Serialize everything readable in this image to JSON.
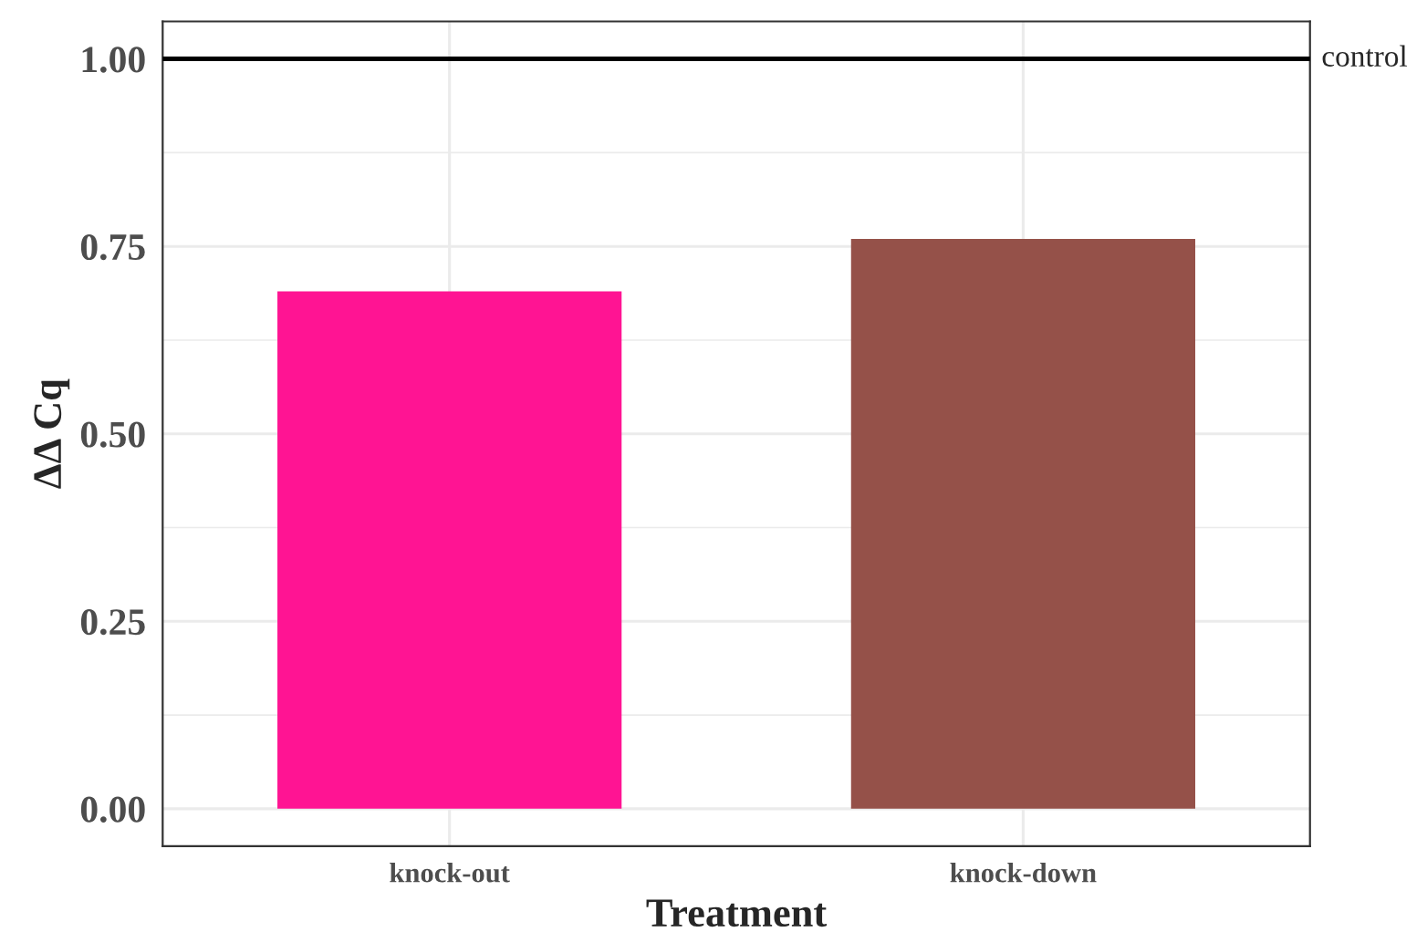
{
  "chart_data": {
    "type": "bar",
    "xlabel": "Treatment",
    "ylabel": "ΔΔ Cq",
    "categories": [
      "knock-out",
      "knock-down"
    ],
    "values": [
      0.69,
      0.76
    ],
    "colors": [
      "#ff1493",
      "#955149"
    ],
    "ylim": [
      -0.05,
      1.05
    ],
    "yticks": [
      {
        "value": 0,
        "label": "0.00"
      },
      {
        "value": 0.25,
        "label": "0.25"
      },
      {
        "value": 0.5,
        "label": "0.50"
      },
      {
        "value": 0.75,
        "label": "0.75"
      },
      {
        "value": 1.0,
        "label": "1.00"
      }
    ],
    "grid": true,
    "ref_lines": [
      {
        "axis": "y",
        "value": 1.0,
        "label": "control",
        "color": "#000000",
        "line_style": "solid"
      }
    ]
  }
}
